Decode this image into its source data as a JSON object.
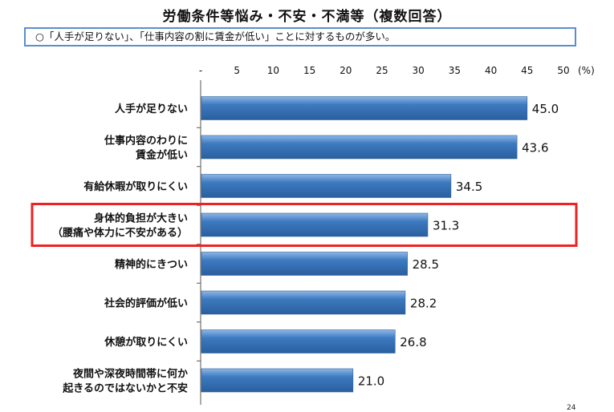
{
  "title": "労働条件等悩み・不安・不満等（複数回答）",
  "note": "○「人手が足りない」、「仕事内容の割に賃金が低い」ことに対するものが多い。",
  "page_number": "24",
  "chart_data": {
    "type": "bar",
    "orientation": "horizontal",
    "unit_label": "(%)",
    "xlim": [
      0,
      50
    ],
    "ticks": [
      "-",
      "5",
      "10",
      "15",
      "20",
      "25",
      "30",
      "35",
      "40",
      "45",
      "50"
    ],
    "bar_color": "#3d7ac0",
    "highlight_color": "#ee2222",
    "highlight_index": 3,
    "categories": [
      [
        "人手が足りない"
      ],
      [
        "仕事内容のわりに",
        "賃金が低い"
      ],
      [
        "有給休暇が取りにくい"
      ],
      [
        "身体的負担が大きい",
        "（腰痛や体力に不安がある）"
      ],
      [
        "精神的にきつい"
      ],
      [
        "社会的評価が低い"
      ],
      [
        "休憩が取りにくい"
      ],
      [
        "夜間や深夜時間帯に何か",
        "起きるのではないかと不安"
      ]
    ],
    "values": [
      45.0,
      43.6,
      34.5,
      31.3,
      28.5,
      28.2,
      26.8,
      21.0
    ],
    "value_labels": [
      "45.0",
      "43.6",
      "34.5",
      "31.3",
      "28.5",
      "28.2",
      "26.8",
      "21.0"
    ]
  }
}
